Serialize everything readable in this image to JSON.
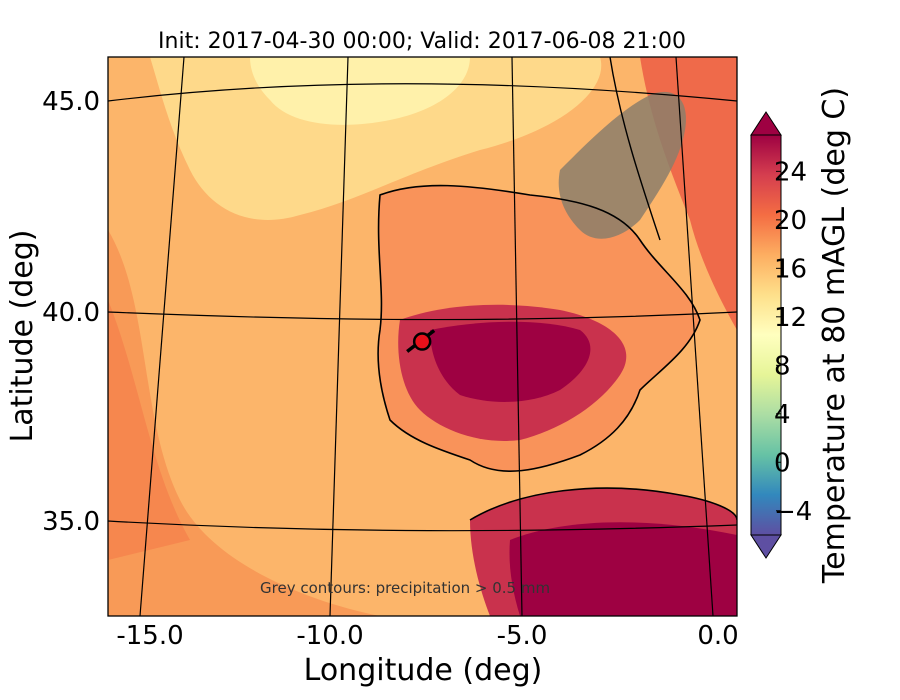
{
  "title": "Init: 2017-04-30 00:00; Valid: 2017-06-08 21:00",
  "note": "Grey contours: precipitation > 0.5 mm",
  "axes": {
    "xlabel": "Longitude (deg)",
    "ylabel": "Latitude (deg)",
    "xticks": [
      "-15.0",
      "-10.0",
      "-5.0",
      "0.0"
    ],
    "yticks": [
      "45.0",
      "40.0",
      "35.0"
    ]
  },
  "colorbar": {
    "label": "Temperature at 80 mAGL (deg C)",
    "ticks": [
      "24",
      "20",
      "16",
      "12",
      "8",
      "4",
      "0",
      "−4"
    ],
    "range": [
      -6,
      27
    ],
    "colors": [
      "#5e4fa2",
      "#3288bd",
      "#66c2a5",
      "#abdda4",
      "#e6f598",
      "#ffffbf",
      "#fee08b",
      "#fdae61",
      "#f46d43",
      "#d53e4f",
      "#9e0142"
    ]
  },
  "map": {
    "lon_range": [
      -16,
      0.3
    ],
    "lat_range": [
      32.7,
      46.3
    ],
    "marker": {
      "lon": -7.6,
      "lat": 39.3
    }
  }
}
